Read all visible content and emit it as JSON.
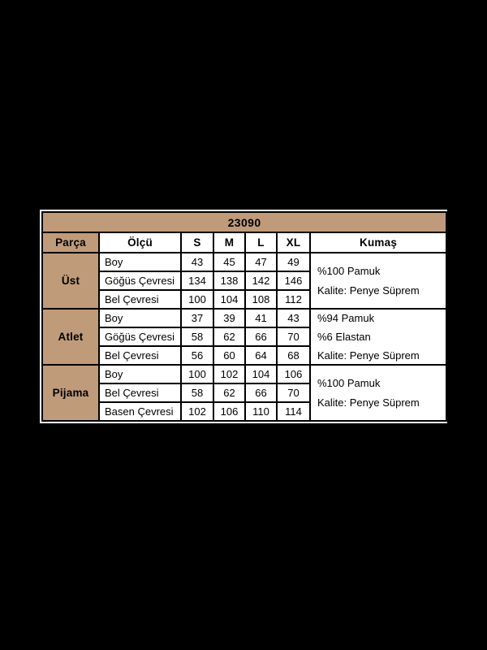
{
  "page": {
    "background": "#000000"
  },
  "table": {
    "code": "23090",
    "columns": [
      "Parça",
      "Ölçü",
      "S",
      "M",
      "L",
      "XL",
      "Kumaş"
    ],
    "groups": [
      {
        "name": "Üst",
        "rows": [
          {
            "label": "Boy",
            "values": [
              "43",
              "45",
              "47",
              "49"
            ]
          },
          {
            "label": "Göğüs Çevresi",
            "values": [
              "134",
              "138",
              "142",
              "146"
            ]
          },
          {
            "label": "Bel Çevresi",
            "values": [
              "100",
              "104",
              "108",
              "112"
            ]
          }
        ],
        "fabric": [
          "%100 Pamuk",
          "Kalite: Penye Süprem"
        ]
      },
      {
        "name": "Atlet",
        "rows": [
          {
            "label": "Boy",
            "values": [
              "37",
              "39",
              "41",
              "43"
            ]
          },
          {
            "label": "Göğüs Çevresi",
            "values": [
              "58",
              "62",
              "66",
              "70"
            ]
          },
          {
            "label": "Bel Çevresi",
            "values": [
              "56",
              "60",
              "64",
              "68"
            ]
          }
        ],
        "fabric": [
          "%94 Pamuk",
          "%6 Elastan",
          "Kalite: Penye Süprem"
        ]
      },
      {
        "name": "Pijama",
        "rows": [
          {
            "label": "Boy",
            "values": [
              "100",
              "102",
              "104",
              "106"
            ]
          },
          {
            "label": "Bel Çevresi",
            "values": [
              "58",
              "62",
              "66",
              "70"
            ]
          },
          {
            "label": "Basen Çevresi",
            "values": [
              "102",
              "106",
              "110",
              "114"
            ]
          }
        ],
        "fabric": [
          "%100 Pamuk",
          "Kalite: Penye Süprem"
        ]
      }
    ],
    "colors": {
      "accent": "#bf9b7a",
      "border": "#000000",
      "outline": "#ffffff",
      "cell_bg": "#ffffff",
      "text": "#000000"
    }
  }
}
